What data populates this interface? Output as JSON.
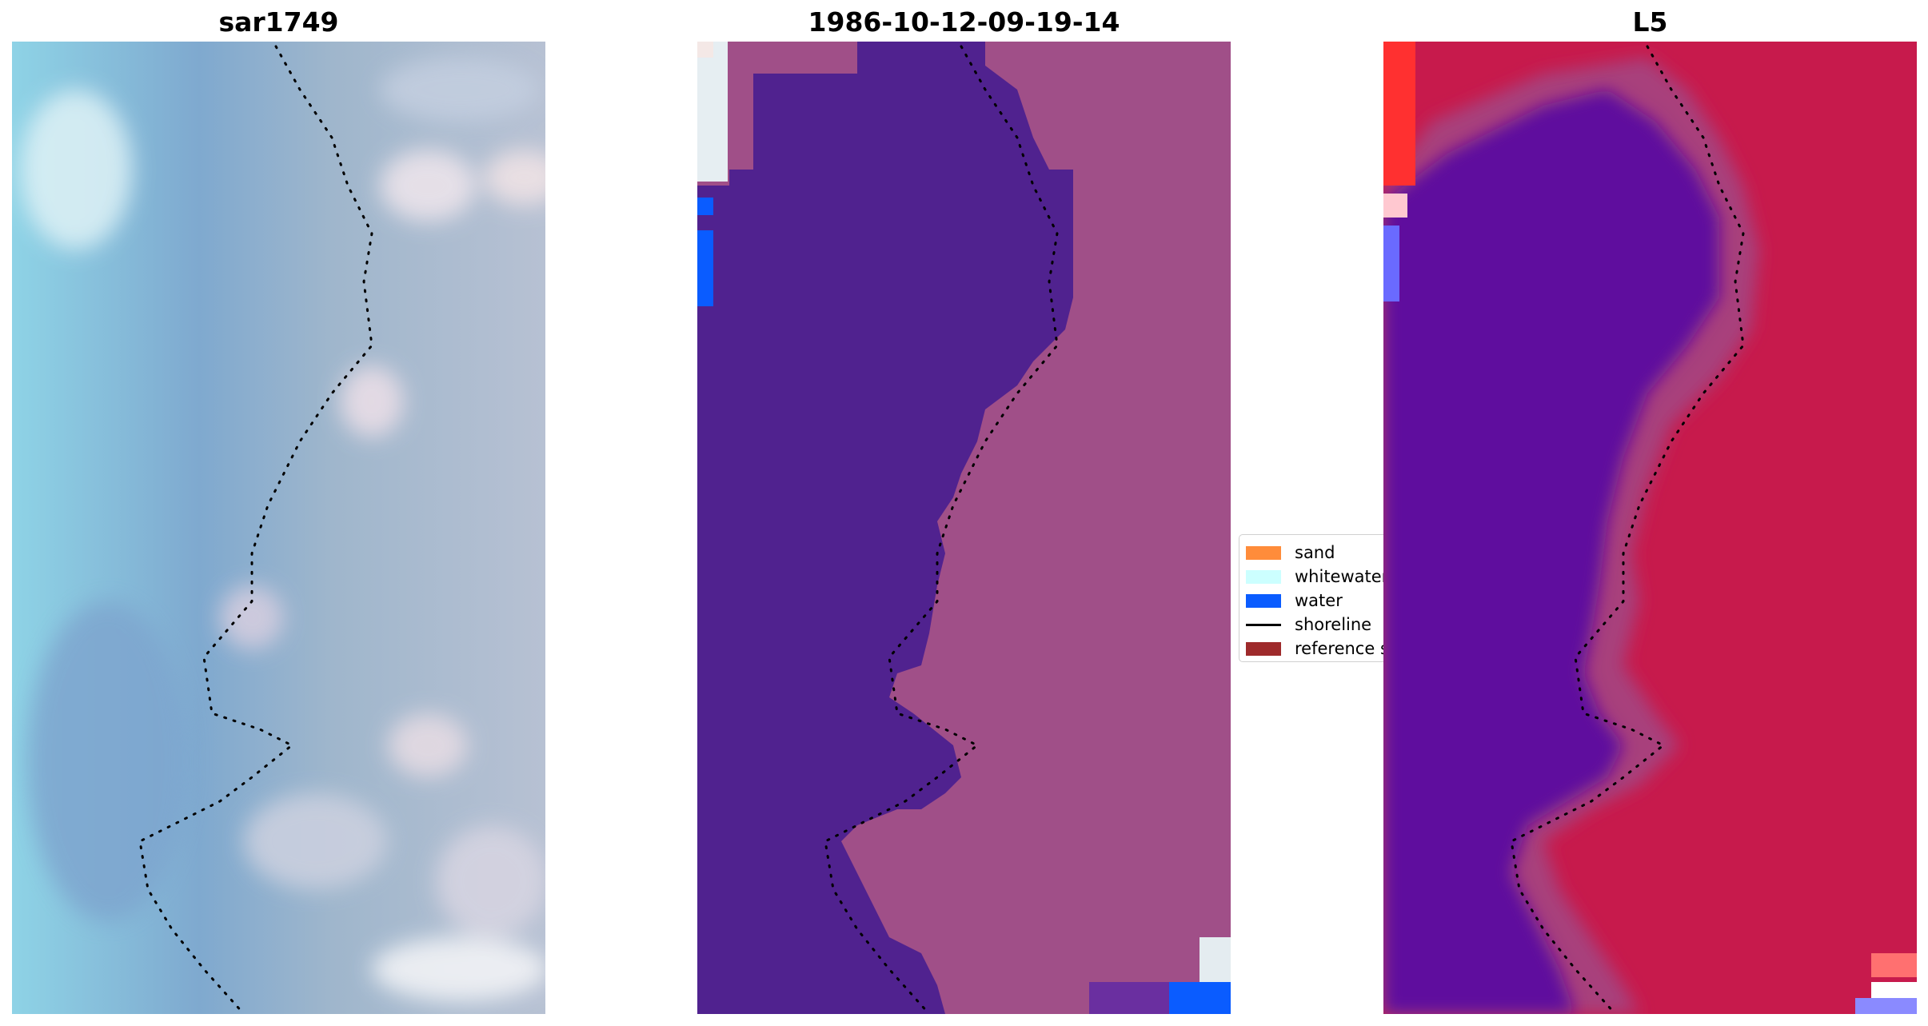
{
  "panels": [
    {
      "title": "sar1749",
      "kind": "rgb-image"
    },
    {
      "title": "1986-10-12-09-19-14",
      "kind": "classified-image"
    },
    {
      "title": "L5",
      "kind": "index-image"
    }
  ],
  "legend": {
    "items": [
      {
        "label": "sand",
        "color": "#ff8c3a",
        "type": "patch"
      },
      {
        "label": "whitewater",
        "color": "#ccffff",
        "type": "patch"
      },
      {
        "label": "water",
        "color": "#0a5cff",
        "type": "patch"
      },
      {
        "label": "shoreline",
        "color": "#000000",
        "type": "line"
      },
      {
        "label": "reference s",
        "color": "#9e2a2b",
        "type": "patch"
      }
    ]
  },
  "colors": {
    "land_class": "#a04f88",
    "water_class": "#50228f",
    "water_pixel": "#0a5cff",
    "whitewater_pixel": "#e8eef2",
    "index_low": "#5a0aa0",
    "index_high": "#d01548",
    "rgb_water": "#7fa5c8",
    "rgb_land": "#b8c0d4"
  }
}
